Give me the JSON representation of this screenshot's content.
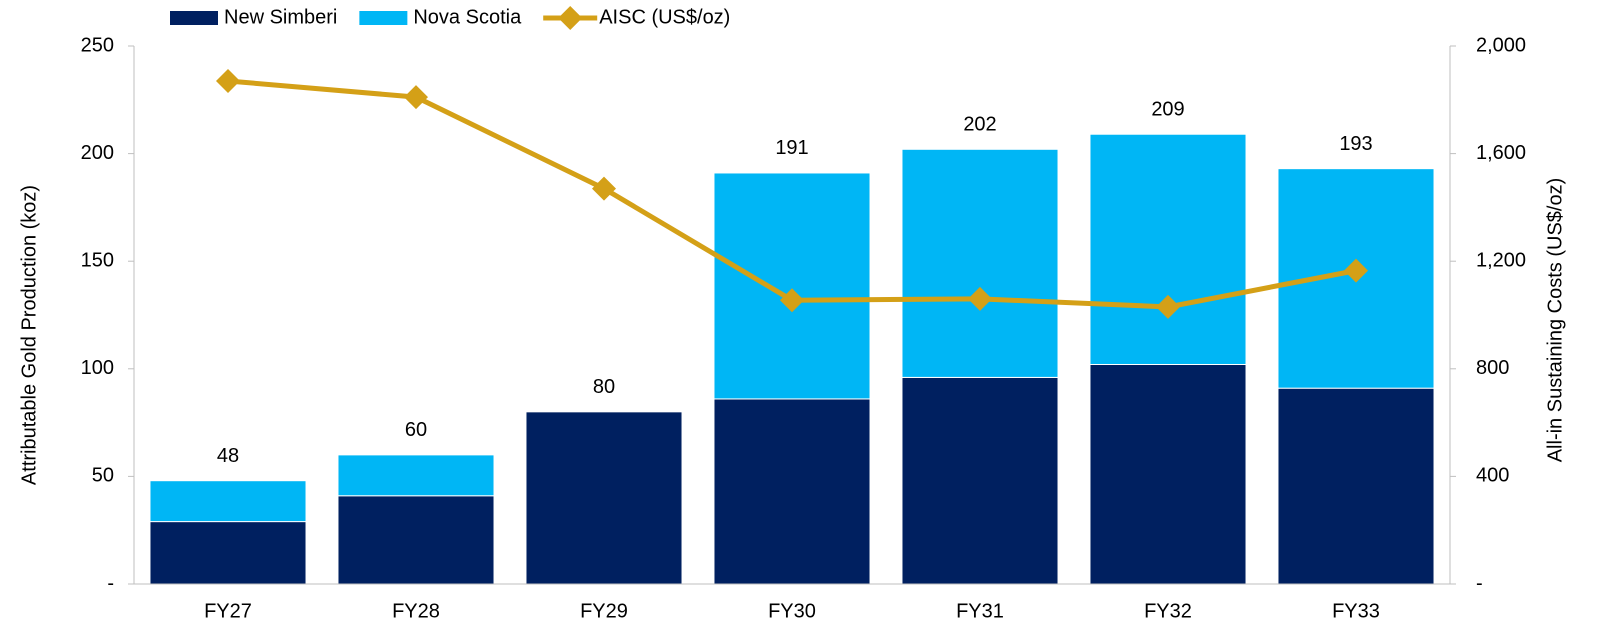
{
  "chart_data": {
    "type": "bar",
    "categories": [
      "FY27",
      "FY28",
      "FY29",
      "FY30",
      "FY31",
      "FY32",
      "FY33"
    ],
    "series": [
      {
        "name": "New Simberi",
        "color": "#002060",
        "values": [
          29,
          41,
          80,
          86,
          96,
          102,
          91
        ]
      },
      {
        "name": "Nova Scotia",
        "color": "#00b6f5",
        "values": [
          19,
          19,
          0,
          105,
          106,
          107,
          102
        ]
      },
      {
        "name": "AISC (US$/oz)",
        "color": "#d4a017",
        "type": "line",
        "axis": "y2",
        "values": [
          1870,
          1810,
          1470,
          1055,
          1060,
          1030,
          1165
        ]
      }
    ],
    "totals": [
      48,
      60,
      80,
      191,
      202,
      209,
      193
    ],
    "ylabel": "Attributable Gold Production (koz)",
    "y2label": "All-in Sustaining Costs (US$/oz)",
    "ylim": [
      0,
      250
    ],
    "yticks": [
      {
        "value": 0,
        "label": "-"
      },
      50,
      100,
      150,
      200,
      250
    ],
    "y2lim": [
      0,
      2000
    ],
    "y2ticks": [
      {
        "value": 0,
        "label": "-"
      },
      400,
      800,
      {
        "value": 1200,
        "label": "1,200"
      },
      {
        "value": 1600,
        "label": "1,600"
      },
      {
        "value": 2000,
        "label": "2,000"
      }
    ]
  }
}
